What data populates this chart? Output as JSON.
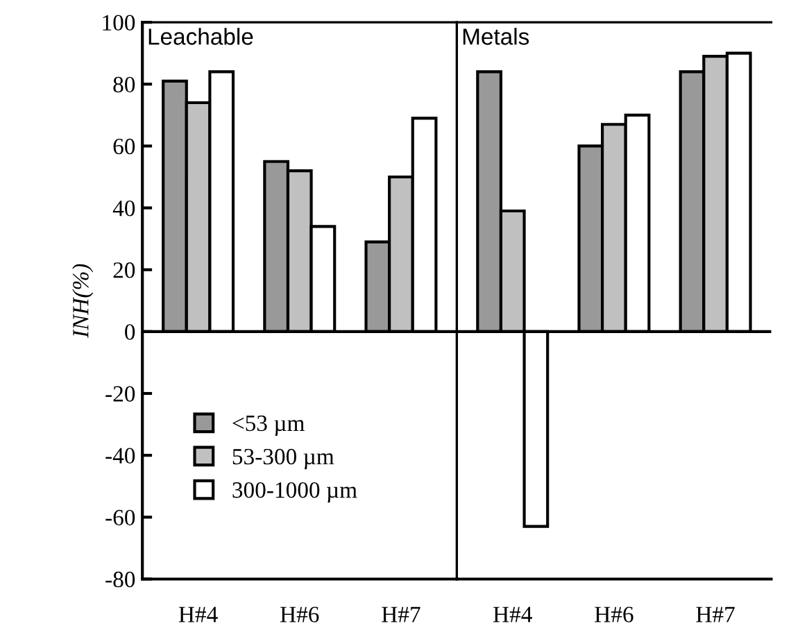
{
  "chart_data": [
    {
      "type": "bar",
      "ylabel": "INH(%)",
      "annotations": [
        "Leachable"
      ],
      "categories": [
        "H#4",
        "H#6",
        "H#7"
      ],
      "series": [
        {
          "name": "<53 µm",
          "color": "#999999",
          "values": [
            81,
            55,
            29
          ]
        },
        {
          "name": "53-300 µm",
          "color": "#c0c0c0",
          "values": [
            74,
            52,
            50
          ]
        },
        {
          "name": "300-1000 µm",
          "color": "#ffffff",
          "values": [
            84,
            34,
            69
          ]
        }
      ],
      "ylim": [
        -80,
        100
      ],
      "yticks": [
        -80,
        -60,
        -40,
        -20,
        0,
        20,
        40,
        60,
        80,
        100
      ],
      "legend": "bottom left"
    },
    {
      "type": "bar",
      "annotations": [
        "Metals"
      ],
      "categories": [
        "H#4",
        "H#6",
        "H#7"
      ],
      "series": [
        {
          "color": "#999999",
          "values": [
            84,
            60,
            84
          ]
        },
        {
          "color": "#c0c0c0",
          "values": [
            39,
            67,
            89
          ]
        },
        {
          "color": "#ffffff",
          "values": [
            -63,
            70,
            90
          ]
        }
      ],
      "ylim": [
        -80,
        100
      ],
      "tick_labels": "x"
    }
  ]
}
